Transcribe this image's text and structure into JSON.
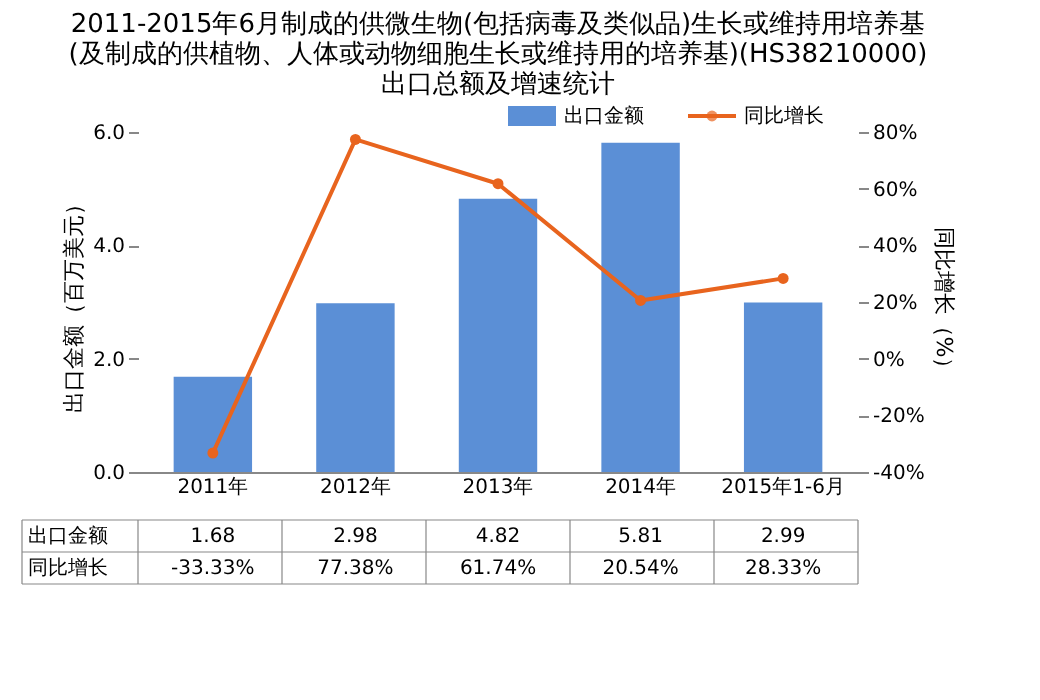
{
  "chart_data": {
    "type": "bar",
    "title": "2011-2015年6月制成的供微生物(包括病毒及类似品)生长或维持用培养基(及制成的供植物、人体或动物细胞生长或维持用的培养基)(HS38210000)出口总额及增速统计",
    "categories": [
      "2011年",
      "2012年",
      "2013年",
      "2014年",
      "2015年1-6月"
    ],
    "series": [
      {
        "name": "出口金额",
        "color": "#5b8fd6",
        "values": [
          1.68,
          2.98,
          4.82,
          5.81,
          2.99
        ],
        "value_labels": [
          "1.68",
          "2.98",
          "4.82",
          "5.81",
          "2.99"
        ]
      },
      {
        "name": "同比增长",
        "type": "line",
        "axis": "y2",
        "color": "#e8641e",
        "values": [
          -33.33,
          77.38,
          61.74,
          20.54,
          28.33
        ],
        "value_labels": [
          "-33.33%",
          "77.38%",
          "61.74%",
          "20.54%",
          "28.33%"
        ]
      }
    ],
    "ylabel": "出口金额（百万美元）",
    "y2label": "同比增长（%）",
    "ylim": [
      0,
      6
    ],
    "yticks": [
      {
        "value": 0,
        "label": "0.0"
      },
      {
        "value": 2,
        "label": "2.0"
      },
      {
        "value": 4,
        "label": "4.0"
      },
      {
        "value": 6,
        "label": "6.0"
      }
    ],
    "y2lim": [
      -40,
      80
    ],
    "y2ticks": [
      {
        "value": -40,
        "label": "-40%"
      },
      {
        "value": -20,
        "label": "-20%"
      },
      {
        "value": 0,
        "label": "0%"
      },
      {
        "value": 20,
        "label": "20%"
      },
      {
        "value": 40,
        "label": "40%"
      },
      {
        "value": 60,
        "label": "60%"
      },
      {
        "value": 80,
        "label": "80%"
      }
    ],
    "grid": false,
    "legend": "top right",
    "marker": "circle",
    "line_style": "solid"
  }
}
